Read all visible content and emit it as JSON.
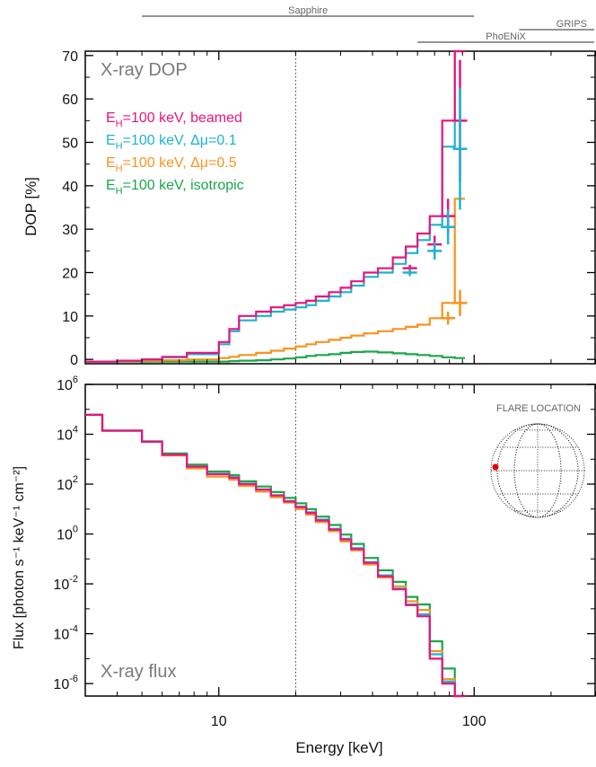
{
  "chart_data": {
    "type": "line",
    "x_axis": {
      "label": "Energy [keV]",
      "scale": "log",
      "range": [
        3,
        300
      ],
      "tick_labels": [
        "10",
        "100"
      ],
      "major_ticks": [
        10,
        100
      ],
      "minor_ticks": [
        3,
        4,
        5,
        6,
        7,
        8,
        9,
        20,
        30,
        40,
        50,
        60,
        70,
        80,
        90,
        200,
        300
      ]
    },
    "instruments": [
      {
        "name": "Sapphire",
        "range": [
          5,
          100
        ]
      },
      {
        "name": "PhoENiX",
        "range": [
          60,
          300
        ]
      },
      {
        "name": "GRIPS",
        "range": [
          150,
          300
        ]
      }
    ],
    "reference_energy_keV": 20,
    "panels": [
      {
        "id": "dop",
        "title": "X-ray DOP",
        "ylabel": "DOP [%]",
        "yscale": "linear",
        "ylim": [
          -1,
          71
        ],
        "y_ticks": [
          0,
          10,
          20,
          30,
          40,
          50,
          60,
          70
        ],
        "y_tick_labels": [
          "0",
          "10",
          "20",
          "30",
          "40",
          "50",
          "60",
          "70"
        ],
        "bin_edges": [
          3.0,
          3.5,
          4.0,
          5.0,
          6.0,
          7.5,
          10.0,
          11.0,
          12.0,
          14.0,
          16.0,
          18.0,
          20.0,
          22.0,
          24.0,
          27.0,
          30.0,
          33.0,
          37.0,
          42.0,
          48.0,
          54.0,
          60.0,
          67.0,
          75.0,
          84.0,
          92.0
        ],
        "series": [
          {
            "name": "E_H=100 keV, beamed",
            "color": "#e6157d",
            "values": [
              -0.5,
              -0.5,
              -0.3,
              0.0,
              0.6,
              1.5,
              4.0,
              7.0,
              10.0,
              11.0,
              12.0,
              12.5,
              13.0,
              13.5,
              14.5,
              15.5,
              16.5,
              18.0,
              20.0,
              21.0,
              23.5,
              26.0,
              29.0,
              33.0,
              55.0,
              100.0
            ]
          },
          {
            "name": "E_H=100 keV, Δμ=0.1",
            "color": "#1eb2d0",
            "values": [
              -0.5,
              -0.5,
              -0.3,
              0.0,
              0.5,
              1.2,
              3.5,
              6.5,
              9.0,
              10.0,
              11.0,
              11.5,
              12.0,
              12.5,
              13.5,
              14.5,
              15.5,
              17.0,
              19.0,
              20.0,
              22.0,
              24.5,
              27.5,
              31.0,
              49.0,
              100.0
            ]
          },
          {
            "name": "E_H=100 keV, Δμ=0.5",
            "color": "#f7931e",
            "values": [
              -0.5,
              -0.5,
              -0.4,
              -0.3,
              -0.2,
              0.0,
              0.3,
              0.6,
              1.0,
              1.5,
              2.0,
              2.5,
              3.0,
              3.5,
              4.0,
              4.5,
              5.0,
              5.5,
              6.0,
              6.5,
              7.0,
              7.5,
              8.0,
              9.5,
              13.0,
              37.0
            ]
          },
          {
            "name": "E_H=100 keV, isotropic",
            "color": "#1aa64a",
            "values": [
              -0.5,
              -0.5,
              -0.5,
              -0.5,
              -0.5,
              -0.5,
              -0.5,
              -0.4,
              -0.3,
              -0.2,
              0.0,
              0.2,
              0.5,
              0.8,
              1.0,
              1.2,
              1.5,
              1.7,
              1.8,
              1.6,
              1.4,
              1.2,
              1.0,
              0.8,
              0.5,
              0.3
            ]
          }
        ],
        "error_bars": [
          {
            "series": 0,
            "x": 56,
            "y": 21,
            "dy": 0.8
          },
          {
            "series": 0,
            "x": 70,
            "y": 26.5,
            "dy": 2
          },
          {
            "series": 0,
            "x": 79,
            "y": 33,
            "dy": 4
          },
          {
            "series": 0,
            "x": 88,
            "y": 55,
            "dy": 14
          },
          {
            "series": 1,
            "x": 56,
            "y": 20,
            "dy": 0.8
          },
          {
            "series": 1,
            "x": 70,
            "y": 25,
            "dy": 2
          },
          {
            "series": 1,
            "x": 79,
            "y": 30.5,
            "dy": 4
          },
          {
            "series": 1,
            "x": 88,
            "y": 48.5,
            "dy": 14
          },
          {
            "series": 2,
            "x": 79,
            "y": 9.5,
            "dy": 1.5
          },
          {
            "series": 2,
            "x": 88,
            "y": 13,
            "dy": 3
          }
        ]
      },
      {
        "id": "flux",
        "title": "X-ray flux",
        "ylabel": "Flux [photon s⁻¹ keV⁻¹ cm⁻²]",
        "yscale": "log",
        "ylim_log10": [
          -6.5,
          6
        ],
        "y_tick_exponents": [
          -6,
          -4,
          -2,
          0,
          2,
          4,
          6
        ],
        "y_tick_labels": [
          "10-6",
          "10-4",
          "10-2",
          "100",
          "102",
          "104",
          "106"
        ],
        "bin_edges": [
          3.0,
          3.5,
          5.0,
          6.0,
          7.5,
          9.0,
          11.0,
          12.0,
          14.0,
          16.0,
          18.0,
          20.0,
          22.0,
          24.0,
          27.0,
          30.0,
          33.0,
          37.0,
          42.0,
          48.0,
          54.0,
          60.0,
          67.0,
          75.0,
          84.0,
          92.0
        ],
        "series": [
          {
            "name": "E_H=100 keV, beamed",
            "color": "#e6157d",
            "values": [
              60000,
              14000,
              5000,
              1500,
              500,
              250,
              180,
              100,
              60,
              35,
              20,
              12,
              7,
              3.5,
              1.5,
              0.6,
              0.25,
              0.07,
              0.02,
              0.006,
              0.0014,
              0.0005,
              1e-05,
              1e-06,
              1e-07
            ]
          },
          {
            "name": "E_H=100 keV, Δμ=0.1",
            "color": "#1eb2d0",
            "values": [
              60000,
              14000,
              5000,
              1500,
              520,
              260,
              190,
              105,
              62,
              36,
              21,
              12.5,
              7.5,
              3.8,
              1.6,
              0.65,
              0.27,
              0.075,
              0.022,
              0.0065,
              0.0015,
              0.0006,
              1.5e-05,
              1.2e-06,
              1e-07
            ]
          },
          {
            "name": "E_H=100 keV, Δμ=0.5",
            "color": "#f7931e",
            "values": [
              60000,
              14000,
              5000,
              1400,
              430,
              200,
              150,
              85,
              50,
              30,
              18,
              10,
              6,
              3.0,
              1.3,
              0.5,
              0.22,
              0.06,
              0.018,
              0.008,
              0.002,
              0.0009,
              2e-05,
              1.5e-06,
              1e-07
            ]
          },
          {
            "name": "E_H=100 keV, isotropic",
            "color": "#1aa64a",
            "values": [
              60000,
              14000,
              5200,
              1700,
              600,
              320,
              230,
              130,
              80,
              48,
              28,
              17,
              10,
              5.0,
              2.3,
              0.95,
              0.4,
              0.11,
              0.035,
              0.012,
              0.003,
              0.0015,
              5e-05,
              4e-06,
              3e-07
            ]
          }
        ],
        "inset": {
          "title": "FLARE LOCATION",
          "marker_color": "#e60000",
          "marker_position": "east limb"
        }
      }
    ],
    "legend": {
      "placement": "top-left of DOP panel",
      "entries": [
        {
          "main": "E",
          "sub": "H",
          "rest": "=100 keV, beamed",
          "color": "#e6157d"
        },
        {
          "main": "E",
          "sub": "H",
          "rest": "=100 keV, Δμ=0.1",
          "color": "#1eb2d0"
        },
        {
          "main": "E",
          "sub": "H",
          "rest": "=100 keV, Δμ=0.5",
          "color": "#f7931e"
        },
        {
          "main": "E",
          "sub": "H",
          "rest": "=100 keV, isotropic",
          "color": "#1aa64a"
        }
      ]
    }
  }
}
